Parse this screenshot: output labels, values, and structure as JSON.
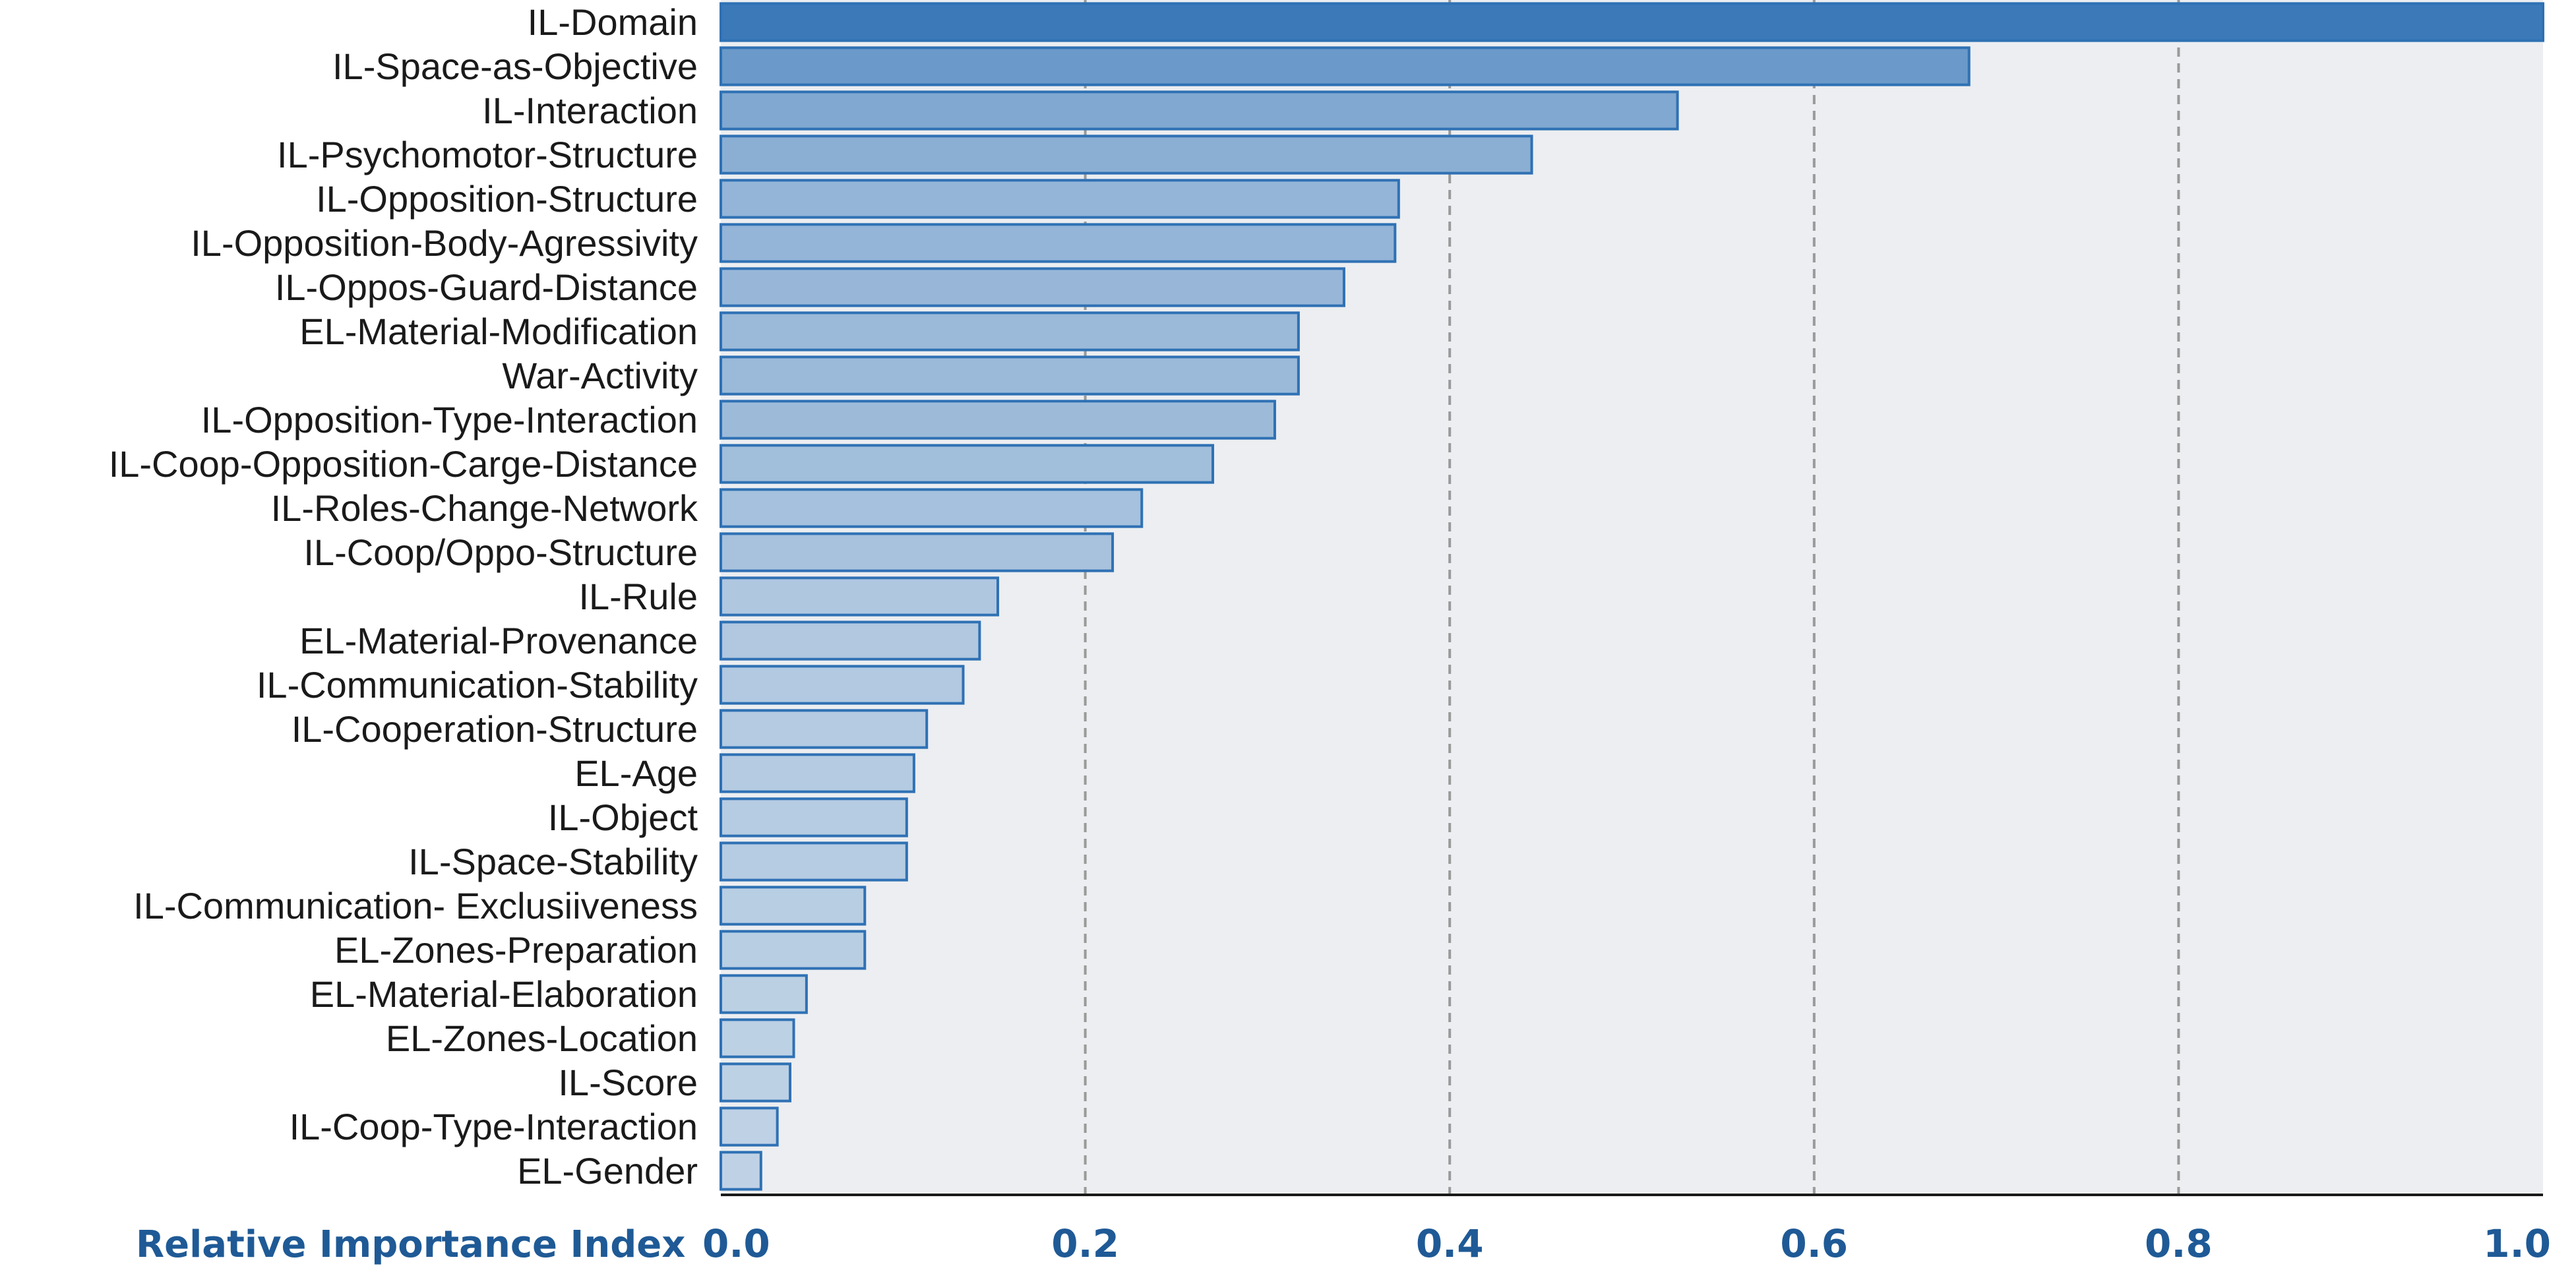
{
  "chart_data": {
    "type": "bar",
    "orientation": "horizontal",
    "categories": [
      "IL-Domain",
      "IL-Space-as-Objective",
      "IL-Interaction",
      "IL-Psychomotor-Structure",
      "IL-Opposition-Structure",
      "IL-Opposition-Body-Agressivity",
      "IL-Oppos-Guard-Distance",
      "EL-Material-Modification",
      "War-Activity",
      "IL-Opposition-Type-Interaction",
      "IL-Coop-Opposition-Carge-Distance",
      "IL-Roles-Change-Network",
      "IL-Coop/Oppo-Structure",
      "IL-Rule",
      "EL-Material-Provenance",
      "IL-Communication-Stability",
      "IL-Cooperation-Structure",
      "EL-Age",
      "IL-Object",
      "IL-Space-Stability",
      "IL-Communication- Exclusiiveness",
      "EL-Zones-Preparation",
      "EL-Material-Elaboration",
      "EL-Zones-Location",
      "IL-Score",
      "IL-Coop-Type-Interaction",
      "EL-Gender"
    ],
    "values": [
      1.0,
      0.685,
      0.525,
      0.445,
      0.372,
      0.37,
      0.342,
      0.317,
      0.317,
      0.304,
      0.27,
      0.231,
      0.215,
      0.152,
      0.142,
      0.133,
      0.113,
      0.106,
      0.102,
      0.102,
      0.079,
      0.079,
      0.047,
      0.04,
      0.038,
      0.031,
      0.022
    ],
    "xlabel": "Relative Importance Index",
    "xlim": [
      0.0,
      1.0
    ],
    "xticks": [
      "0.0",
      "0.2",
      "0.4",
      "0.6",
      "0.8",
      "1.0"
    ],
    "grid": "vertical dashed lines at 0.2, 0.4, 0.6, 0.8",
    "colors": {
      "bar_fill_high": "#3c79b9",
      "bar_fill_low": "#c2d4e6",
      "bar_stroke": "#2f71b4",
      "plot_bg": "#eceef1",
      "gridline": "#9a9a9a",
      "axis_text": "#1f5a96",
      "label_text": "#1a1a1a"
    }
  }
}
